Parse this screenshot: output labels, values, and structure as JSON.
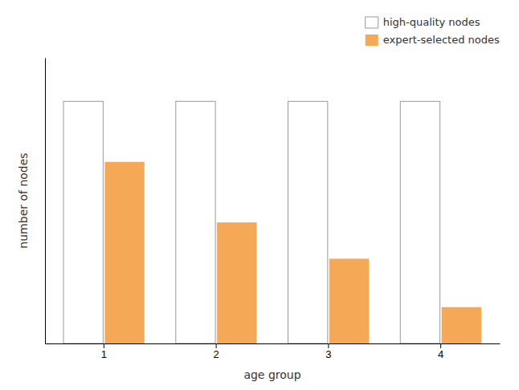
{
  "chart_data": {
    "type": "bar",
    "xlabel": "age group",
    "ylabel": "number of nodes",
    "categories": [
      1,
      2,
      3,
      4
    ],
    "series": [
      {
        "name": "high-quality nodes",
        "color": "#ffffff",
        "values": [
          100,
          100,
          100,
          100
        ]
      },
      {
        "name": "expert-selected nodes",
        "color": "#f5a855",
        "values": [
          75,
          50,
          35,
          15
        ]
      }
    ],
    "ylim": [
      0,
      118
    ],
    "yticks": [],
    "tick_labels": "x",
    "grid": false,
    "legend": "upper right"
  }
}
